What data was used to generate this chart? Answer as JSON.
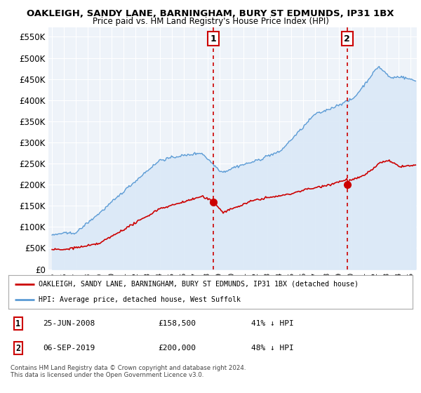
{
  "title": "OAKLEIGH, SANDY LANE, BARNINGHAM, BURY ST EDMUNDS, IP31 1BX",
  "subtitle": "Price paid vs. HM Land Registry's House Price Index (HPI)",
  "ylabel_ticks": [
    "£0",
    "£50K",
    "£100K",
    "£150K",
    "£200K",
    "£250K",
    "£300K",
    "£350K",
    "£400K",
    "£450K",
    "£500K",
    "£550K"
  ],
  "ytick_values": [
    0,
    50000,
    100000,
    150000,
    200000,
    250000,
    300000,
    350000,
    400000,
    450000,
    500000,
    550000
  ],
  "ylim": [
    0,
    572000
  ],
  "xlim_start": 1994.7,
  "xlim_end": 2025.5,
  "hpi_color": "#5b9bd5",
  "hpi_fill_color": "#dae8f7",
  "price_color": "#cc0000",
  "vline_color": "#cc0000",
  "marker1_x": 2008.49,
  "marker2_x": 2019.68,
  "marker1_price": 158500,
  "marker2_price": 200000,
  "legend_line1": "OAKLEIGH, SANDY LANE, BARNINGHAM, BURY ST EDMUNDS, IP31 1BX (detached house)",
  "legend_line2": "HPI: Average price, detached house, West Suffolk",
  "background_color": "#ffffff",
  "plot_bg_color": "#eef3f9",
  "grid_color": "#ffffff"
}
